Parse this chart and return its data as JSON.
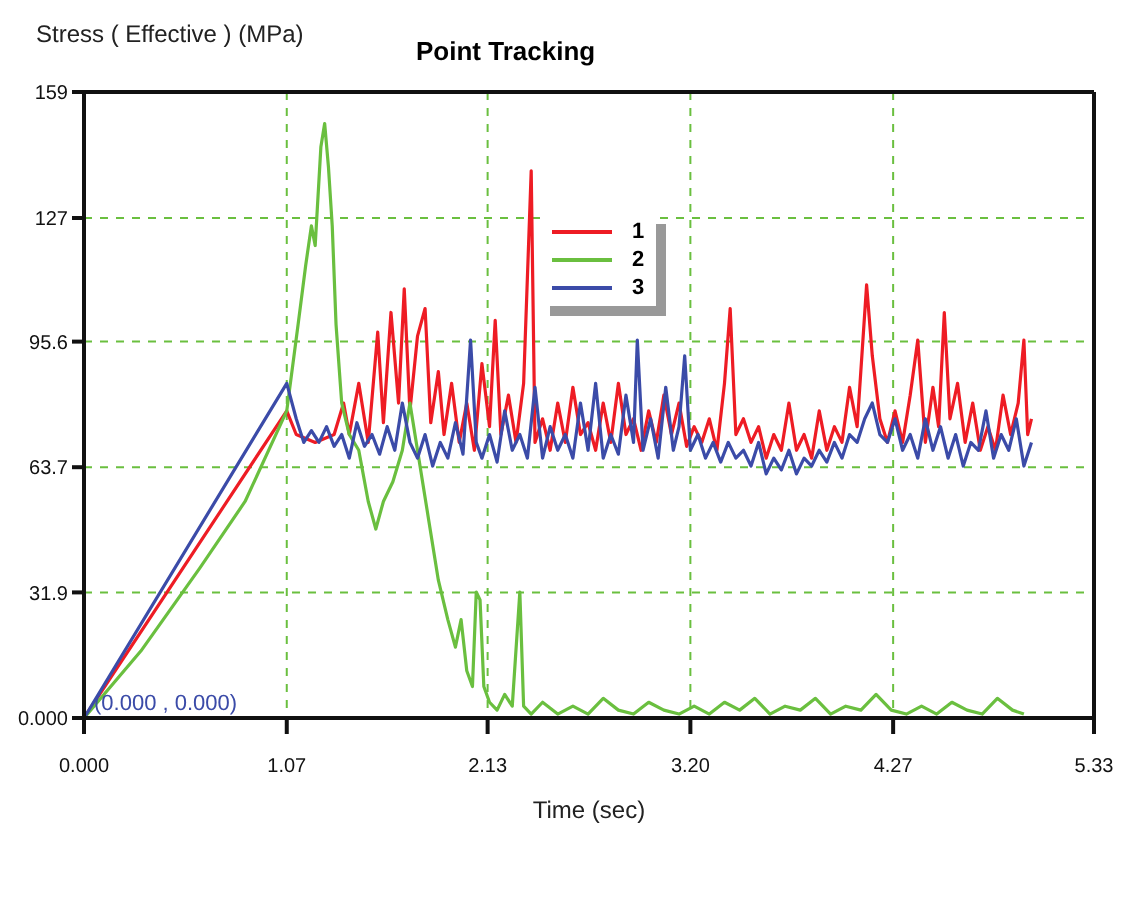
{
  "chart_data": {
    "type": "line",
    "title": "Point Tracking",
    "xlabel": "Time (sec)",
    "ylabel": "Stress ( Effective )  (MPa)",
    "xlim": [
      0,
      5.33
    ],
    "xticks": [
      {
        "value": 0,
        "label": "0.000"
      },
      1.07,
      2.13,
      {
        "value": 3.2,
        "label": "3.20"
      },
      4.27,
      5.33
    ],
    "ylim": [
      0,
      159
    ],
    "yticks": [
      {
        "value": 0,
        "label": "0.000"
      },
      31.9,
      63.7,
      95.6,
      127,
      159
    ],
    "grid": true,
    "legend": "top",
    "annotations": [
      {
        "text": "(0.000 , 0.000)",
        "x": 0,
        "y": 0
      }
    ],
    "series": [
      {
        "name": "1",
        "color": "#ee1c24",
        "x": [
          0,
          1.07,
          1.12,
          1.17,
          1.22,
          1.27,
          1.32,
          1.37,
          1.4,
          1.45,
          1.5,
          1.55,
          1.58,
          1.62,
          1.66,
          1.69,
          1.72,
          1.76,
          1.8,
          1.83,
          1.87,
          1.9,
          1.94,
          1.98,
          2.02,
          2.06,
          2.1,
          2.14,
          2.17,
          2.2,
          2.24,
          2.28,
          2.32,
          2.36,
          2.38,
          2.42,
          2.46,
          2.5,
          2.54,
          2.58,
          2.62,
          2.66,
          2.7,
          2.74,
          2.78,
          2.82,
          2.86,
          2.9,
          2.94,
          2.98,
          3.02,
          3.06,
          3.1,
          3.14,
          3.18,
          3.22,
          3.26,
          3.3,
          3.34,
          3.38,
          3.41,
          3.44,
          3.48,
          3.52,
          3.56,
          3.6,
          3.64,
          3.68,
          3.72,
          3.76,
          3.8,
          3.84,
          3.88,
          3.92,
          3.96,
          4.0,
          4.04,
          4.08,
          4.13,
          4.16,
          4.2,
          4.24,
          4.28,
          4.32,
          4.36,
          4.4,
          4.44,
          4.48,
          4.51,
          4.54,
          4.57,
          4.61,
          4.65,
          4.69,
          4.73,
          4.77,
          4.81,
          4.85,
          4.89,
          4.93,
          4.96,
          4.98,
          5.0
        ],
        "values": [
          0,
          78,
          72,
          71,
          70,
          71,
          72,
          80,
          72,
          85,
          70,
          98,
          75,
          103,
          80,
          109,
          78,
          97,
          104,
          75,
          88,
          72,
          85,
          70,
          80,
          68,
          90,
          74,
          101,
          72,
          82,
          70,
          85,
          139,
          70,
          76,
          68,
          80,
          70,
          84,
          72,
          75,
          68,
          80,
          70,
          85,
          72,
          76,
          68,
          78,
          70,
          82,
          72,
          80,
          69,
          74,
          70,
          76,
          68,
          85,
          104,
          72,
          76,
          70,
          74,
          66,
          72,
          68,
          80,
          68,
          72,
          66,
          78,
          68,
          74,
          70,
          84,
          74,
          110,
          92,
          76,
          70,
          78,
          70,
          82,
          96,
          70,
          84,
          74,
          103,
          76,
          85,
          70,
          80,
          68,
          74,
          68,
          82,
          72,
          80,
          96,
          72,
          76
        ]
      },
      {
        "name": "2",
        "color": "#6abf3f",
        "x": [
          0,
          0.3,
          0.61,
          0.85,
          1.07,
          1.13,
          1.17,
          1.2,
          1.22,
          1.25,
          1.27,
          1.29,
          1.31,
          1.33,
          1.36,
          1.4,
          1.45,
          1.5,
          1.54,
          1.58,
          1.63,
          1.68,
          1.72,
          1.76,
          1.82,
          1.87,
          1.92,
          1.96,
          1.99,
          2.02,
          2.05,
          2.07,
          2.09,
          2.11,
          2.14,
          2.18,
          2.22,
          2.26,
          2.3,
          2.32,
          2.36,
          2.42,
          2.5,
          2.58,
          2.66,
          2.74,
          2.82,
          2.9,
          2.98,
          3.06,
          3.14,
          3.22,
          3.3,
          3.38,
          3.46,
          3.54,
          3.62,
          3.7,
          3.78,
          3.86,
          3.94,
          4.02,
          4.1,
          4.18,
          4.26,
          4.34,
          4.42,
          4.5,
          4.58,
          4.66,
          4.74,
          4.82,
          4.9,
          4.96
        ],
        "values": [
          0,
          17,
          38,
          55,
          78,
          100,
          115,
          125,
          120,
          145,
          151,
          140,
          125,
          100,
          80,
          72,
          68,
          55,
          48,
          55,
          60,
          68,
          80,
          68,
          50,
          35,
          25,
          18,
          25,
          12,
          8,
          32,
          30,
          8,
          4,
          2,
          6,
          3,
          32,
          3,
          1,
          4,
          1,
          3,
          1,
          5,
          2,
          1,
          4,
          2,
          1,
          3,
          1,
          4,
          2,
          5,
          1,
          3,
          2,
          5,
          1,
          3,
          2,
          6,
          2,
          1,
          3,
          1,
          4,
          2,
          1,
          5,
          2,
          1
        ]
      },
      {
        "name": "3",
        "color": "#3b4ba8",
        "x": [
          0,
          1.07,
          1.12,
          1.16,
          1.2,
          1.24,
          1.28,
          1.32,
          1.36,
          1.4,
          1.44,
          1.48,
          1.52,
          1.56,
          1.6,
          1.64,
          1.68,
          1.72,
          1.76,
          1.8,
          1.84,
          1.88,
          1.92,
          1.96,
          2.0,
          2.04,
          2.07,
          2.1,
          2.14,
          2.18,
          2.22,
          2.26,
          2.3,
          2.34,
          2.38,
          2.42,
          2.46,
          2.5,
          2.54,
          2.58,
          2.62,
          2.66,
          2.7,
          2.74,
          2.78,
          2.82,
          2.86,
          2.9,
          2.92,
          2.95,
          2.99,
          3.03,
          3.07,
          3.11,
          3.14,
          3.17,
          3.2,
          3.24,
          3.28,
          3.32,
          3.36,
          3.4,
          3.44,
          3.48,
          3.52,
          3.56,
          3.6,
          3.64,
          3.68,
          3.72,
          3.76,
          3.8,
          3.84,
          3.88,
          3.92,
          3.96,
          4.0,
          4.04,
          4.08,
          4.12,
          4.16,
          4.2,
          4.24,
          4.28,
          4.32,
          4.36,
          4.4,
          4.44,
          4.48,
          4.52,
          4.56,
          4.6,
          4.64,
          4.68,
          4.72,
          4.76,
          4.8,
          4.84,
          4.88,
          4.92,
          4.96,
          5.0
        ],
        "values": [
          0,
          85,
          76,
          70,
          73,
          70,
          74,
          69,
          72,
          66,
          75,
          69,
          72,
          67,
          74,
          68,
          80,
          70,
          66,
          72,
          64,
          70,
          66,
          75,
          67,
          96,
          70,
          66,
          72,
          65,
          78,
          68,
          72,
          66,
          84,
          66,
          74,
          68,
          72,
          66,
          80,
          68,
          85,
          66,
          72,
          67,
          82,
          70,
          96,
          68,
          76,
          66,
          84,
          68,
          74,
          92,
          68,
          72,
          66,
          70,
          65,
          70,
          66,
          68,
          64,
          70,
          62,
          66,
          63,
          68,
          62,
          66,
          64,
          68,
          65,
          70,
          66,
          72,
          70,
          76,
          80,
          72,
          70,
          76,
          68,
          72,
          66,
          76,
          68,
          74,
          66,
          72,
          64,
          70,
          68,
          78,
          66,
          72,
          68,
          76,
          64,
          70
        ]
      }
    ]
  }
}
